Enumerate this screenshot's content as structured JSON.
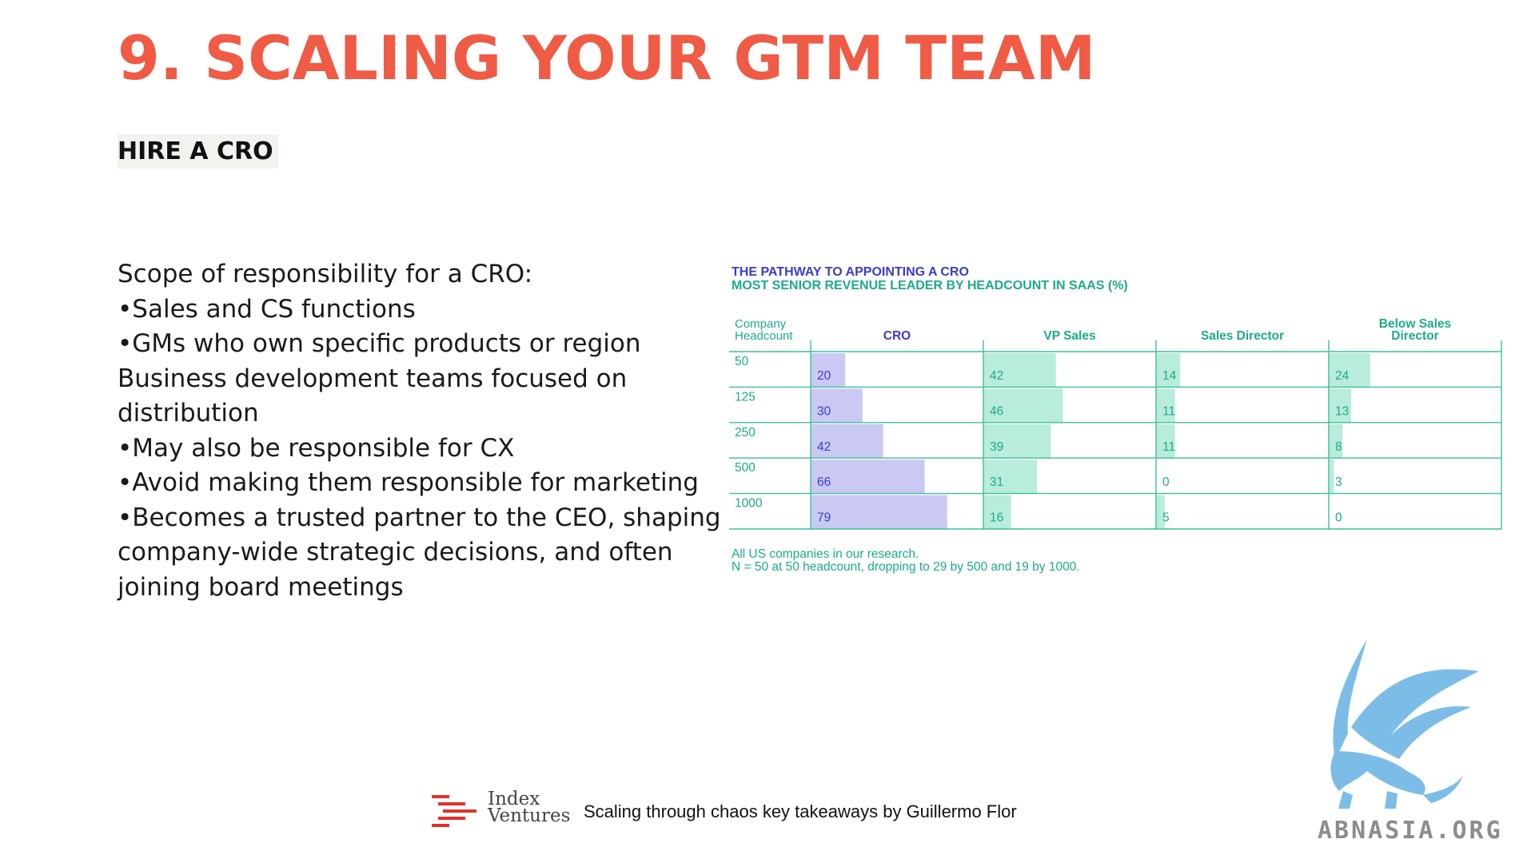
{
  "slide": {
    "title": "9. SCALING YOUR GTM TEAM",
    "subtitle": "HIRE A CRO",
    "bullets": [
      "Scope of responsibility for a CRO:",
      "•Sales and CS functions",
      "•GMs who own specific products or region",
      "Business development teams focused on",
      "distribution",
      "•May also be responsible for CX",
      "•Avoid making them responsible for marketing",
      "•Becomes a trusted partner to the CEO, shaping",
      "company-wide strategic decisions, and often",
      "joining board meetings"
    ]
  },
  "chart_data": {
    "type": "bar",
    "title": "THE PATHWAY TO APPOINTING A CRO",
    "subtitle": "MOST SENIOR REVENUE LEADER BY HEADCOUNT IN SAAS (%)",
    "row_header": [
      "Company",
      "Headcount"
    ],
    "categories": [
      "50",
      "125",
      "250",
      "500",
      "1000"
    ],
    "series": [
      {
        "name": "CRO",
        "label_lines": [
          "CRO"
        ],
        "values": [
          20,
          30,
          42,
          66,
          79
        ]
      },
      {
        "name": "VP Sales",
        "label_lines": [
          "VP Sales"
        ],
        "values": [
          42,
          46,
          39,
          31,
          16
        ]
      },
      {
        "name": "Sales Director",
        "label_lines": [
          "Sales Director"
        ],
        "values": [
          14,
          11,
          11,
          0,
          5
        ]
      },
      {
        "name": "Below Sales Director",
        "label_lines": [
          "Below Sales",
          "Director"
        ],
        "values": [
          24,
          13,
          8,
          3,
          0
        ]
      }
    ],
    "ylim": [
      0,
      100
    ],
    "colors": {
      "CRO": "#c9c9f4",
      "others": "#b8ecdc",
      "line": "#3cbf9a",
      "text_cro": "#3b3bcc",
      "text_other": "#1daa8a"
    },
    "footnotes": [
      "All US companies in our research.",
      "N = 50 at 50 headcount, dropping to 29 by 500 and 19 by 1000."
    ]
  },
  "footer": {
    "brand_line1": "Index",
    "brand_line2": "Ventures",
    "caption": "Scaling through chaos key takeaways by Guillermo Flor",
    "brand_color": "#e0322b"
  },
  "watermark": {
    "text": "ABNASIA.ORG",
    "bird_color": "#7cbde8"
  }
}
